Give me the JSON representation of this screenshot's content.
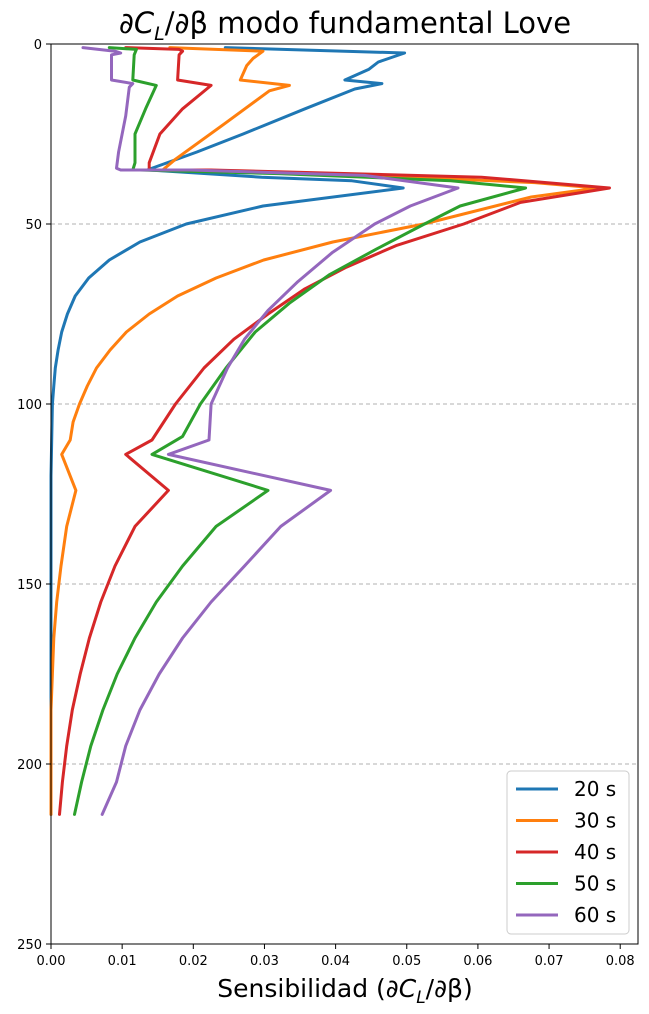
{
  "chart_data": {
    "type": "line",
    "title": "∂C_L/∂β modo fundamental Love",
    "title_parts": {
      "pre": "∂",
      "c": "C",
      "sub": "L",
      "post": "/∂β modo fundamental Love"
    },
    "xlabel": "Sensibilidad (∂C_L/∂β)",
    "xlabel_parts": {
      "pre": "Sensibilidad (∂",
      "c": "C",
      "sub": "L",
      "post": "/∂β)"
    },
    "ylabel": "",
    "xlim": [
      0.0,
      0.0825
    ],
    "ylim": [
      250,
      0
    ],
    "y_inverted": true,
    "xticks": [
      0.0,
      0.01,
      0.02,
      0.03,
      0.04,
      0.05,
      0.06,
      0.07,
      0.08
    ],
    "xtick_labels": [
      "0.00",
      "0.01",
      "0.02",
      "0.03",
      "0.04",
      "0.05",
      "0.06",
      "0.07",
      "0.08"
    ],
    "yticks": [
      0,
      50,
      100,
      150,
      200,
      250
    ],
    "ytick_labels": [
      "0",
      "50",
      "100",
      "150",
      "200",
      "250"
    ],
    "grid": {
      "y": true,
      "x": false,
      "style": "dashed"
    },
    "legend_position": "bottom-right",
    "series": [
      {
        "name": "20 s",
        "color": "#1f77b4",
        "points": [
          [
            0.0245,
            1
          ],
          [
            0.0497,
            2.5
          ],
          [
            0.046,
            5
          ],
          [
            0.0447,
            7
          ],
          [
            0.0413,
            10
          ],
          [
            0.0465,
            11
          ],
          [
            0.0427,
            12.5
          ],
          [
            0.0357,
            18
          ],
          [
            0.027,
            25
          ],
          [
            0.0205,
            30
          ],
          [
            0.0135,
            35
          ],
          [
            0.0138,
            35
          ],
          [
            0.0296,
            37
          ],
          [
            0.0423,
            38
          ],
          [
            0.0495,
            40
          ],
          [
            0.0298,
            45
          ],
          [
            0.019,
            50
          ],
          [
            0.0125,
            55
          ],
          [
            0.0082,
            60
          ],
          [
            0.0053,
            65
          ],
          [
            0.0034,
            70
          ],
          [
            0.0023,
            75
          ],
          [
            0.0015,
            80
          ],
          [
            0.001,
            85
          ],
          [
            0.0006,
            90
          ],
          [
            0.0004,
            95
          ],
          [
            0.0002,
            100
          ],
          [
            0.0001,
            110
          ],
          [
            0.0,
            120
          ],
          [
            0.0,
            150
          ],
          [
            0.0,
            200
          ],
          [
            0.0,
            214
          ]
        ]
      },
      {
        "name": "30 s",
        "color": "#ff7f0e",
        "points": [
          [
            0.0167,
            1
          ],
          [
            0.0298,
            2
          ],
          [
            0.0284,
            4
          ],
          [
            0.0275,
            6
          ],
          [
            0.0266,
            10
          ],
          [
            0.0335,
            11.5
          ],
          [
            0.0307,
            13
          ],
          [
            0.0245,
            22
          ],
          [
            0.0175,
            32
          ],
          [
            0.0157,
            35
          ],
          [
            0.0158,
            35
          ],
          [
            0.0505,
            37
          ],
          [
            0.068,
            38.5
          ],
          [
            0.0768,
            40
          ],
          [
            0.0675,
            42.5
          ],
          [
            0.0524,
            50
          ],
          [
            0.0396,
            55
          ],
          [
            0.0299,
            60
          ],
          [
            0.0232,
            65
          ],
          [
            0.0178,
            70
          ],
          [
            0.0138,
            75
          ],
          [
            0.0106,
            80
          ],
          [
            0.0083,
            85
          ],
          [
            0.0064,
            90
          ],
          [
            0.0051,
            95
          ],
          [
            0.004,
            100
          ],
          [
            0.0031,
            105
          ],
          [
            0.0027,
            110
          ],
          [
            0.0015,
            114
          ],
          [
            0.0035,
            124
          ],
          [
            0.0022,
            134
          ],
          [
            0.0014,
            145
          ],
          [
            0.0008,
            155
          ],
          [
            0.0004,
            165
          ],
          [
            0.0002,
            175
          ],
          [
            0.0,
            185
          ],
          [
            0.0,
            214
          ]
        ]
      },
      {
        "name": "40 s",
        "color": "#d62728",
        "points": [
          [
            0.0105,
            1
          ],
          [
            0.018,
            1.5
          ],
          [
            0.0185,
            2
          ],
          [
            0.018,
            3
          ],
          [
            0.0178,
            10
          ],
          [
            0.0225,
            11.5
          ],
          [
            0.0185,
            18
          ],
          [
            0.0153,
            25
          ],
          [
            0.0138,
            33
          ],
          [
            0.0138,
            35
          ],
          [
            0.0225,
            35
          ],
          [
            0.0605,
            37
          ],
          [
            0.0785,
            40
          ],
          [
            0.066,
            44
          ],
          [
            0.058,
            50
          ],
          [
            0.0485,
            56
          ],
          [
            0.0415,
            62
          ],
          [
            0.0357,
            68
          ],
          [
            0.0305,
            75
          ],
          [
            0.0257,
            82
          ],
          [
            0.0215,
            90
          ],
          [
            0.0175,
            100
          ],
          [
            0.0142,
            110
          ],
          [
            0.0105,
            114
          ],
          [
            0.0165,
            124
          ],
          [
            0.0118,
            134
          ],
          [
            0.009,
            145
          ],
          [
            0.007,
            155
          ],
          [
            0.0054,
            165
          ],
          [
            0.0041,
            175
          ],
          [
            0.003,
            185
          ],
          [
            0.0022,
            195
          ],
          [
            0.0016,
            205
          ],
          [
            0.0012,
            214
          ]
        ]
      },
      {
        "name": "50 s",
        "color": "#2ca02c",
        "points": [
          [
            0.0082,
            1
          ],
          [
            0.012,
            1.5
          ],
          [
            0.0117,
            3
          ],
          [
            0.0115,
            10
          ],
          [
            0.0148,
            11.5
          ],
          [
            0.0133,
            18
          ],
          [
            0.0118,
            25
          ],
          [
            0.0118,
            33
          ],
          [
            0.0115,
            35
          ],
          [
            0.0125,
            35
          ],
          [
            0.032,
            36
          ],
          [
            0.0562,
            38
          ],
          [
            0.0667,
            40
          ],
          [
            0.0575,
            45
          ],
          [
            0.0525,
            50
          ],
          [
            0.0457,
            57
          ],
          [
            0.0392,
            64
          ],
          [
            0.0335,
            72
          ],
          [
            0.0287,
            80
          ],
          [
            0.0246,
            90
          ],
          [
            0.021,
            100
          ],
          [
            0.0185,
            109
          ],
          [
            0.0142,
            114
          ],
          [
            0.0305,
            124
          ],
          [
            0.0232,
            134
          ],
          [
            0.0185,
            145
          ],
          [
            0.0148,
            155
          ],
          [
            0.0118,
            165
          ],
          [
            0.0093,
            175
          ],
          [
            0.0073,
            185
          ],
          [
            0.0056,
            195
          ],
          [
            0.0043,
            205
          ],
          [
            0.0033,
            214
          ]
        ]
      },
      {
        "name": "60 s",
        "color": "#9467bd",
        "points": [
          [
            0.0045,
            1
          ],
          [
            0.009,
            2
          ],
          [
            0.0098,
            2.5
          ],
          [
            0.0085,
            3
          ],
          [
            0.0085,
            10
          ],
          [
            0.0115,
            11
          ],
          [
            0.011,
            12
          ],
          [
            0.0105,
            20
          ],
          [
            0.0095,
            30
          ],
          [
            0.0092,
            34.5
          ],
          [
            0.0098,
            35
          ],
          [
            0.0195,
            35
          ],
          [
            0.044,
            36.5
          ],
          [
            0.0572,
            40
          ],
          [
            0.0505,
            45
          ],
          [
            0.0455,
            50
          ],
          [
            0.0395,
            58
          ],
          [
            0.0347,
            66
          ],
          [
            0.0305,
            74
          ],
          [
            0.0272,
            82
          ],
          [
            0.0248,
            90
          ],
          [
            0.0225,
            100
          ],
          [
            0.0222,
            110
          ],
          [
            0.0165,
            114
          ],
          [
            0.0393,
            124
          ],
          [
            0.0323,
            134
          ],
          [
            0.0272,
            145
          ],
          [
            0.0225,
            155
          ],
          [
            0.0185,
            165
          ],
          [
            0.0152,
            175
          ],
          [
            0.0125,
            185
          ],
          [
            0.0105,
            195
          ],
          [
            0.0092,
            205
          ],
          [
            0.0072,
            214
          ]
        ]
      }
    ]
  }
}
